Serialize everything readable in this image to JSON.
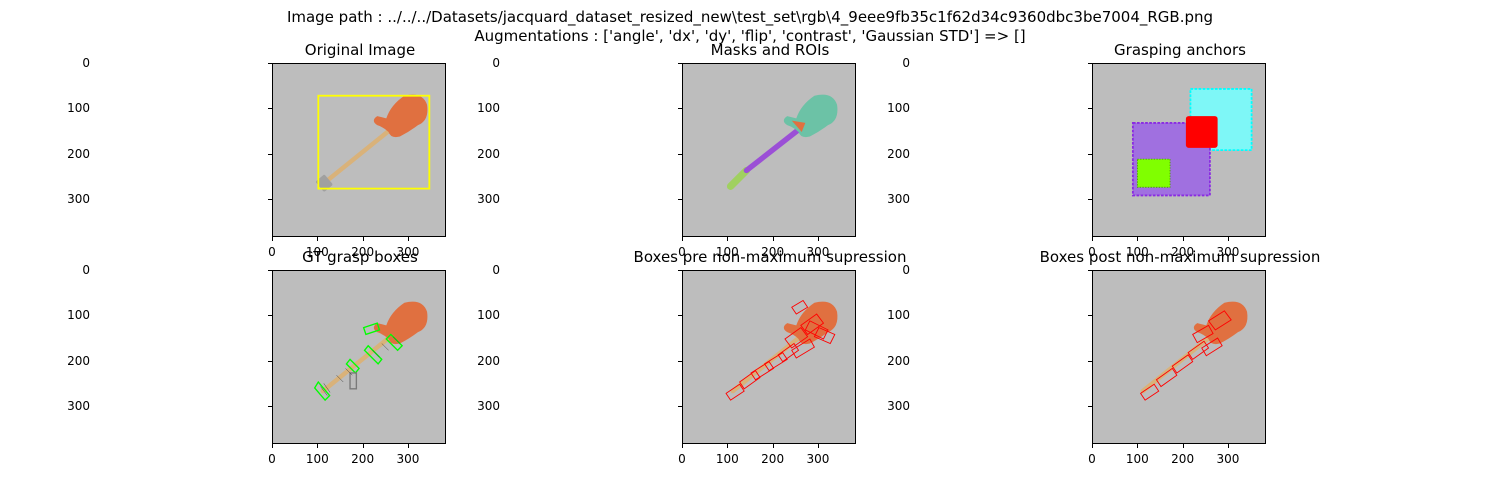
{
  "header": {
    "line1": "Image path : ../../../Datasets/jacquard_dataset_resized_new\\test_set\\rgb\\4_9eee9fb35c1f62d34c9360dbc3be7004_RGB.png",
    "line2": "Augmentations : ['angle', 'dx', 'dy', 'flip', 'contrast', 'Gaussian STD'] => []"
  },
  "panels": [
    {
      "title": "Original Image"
    },
    {
      "title": "Masks and ROIs"
    },
    {
      "title": "Grasping anchors"
    },
    {
      "title": "GT grasp boxes"
    },
    {
      "title": "Boxes pre non-maximum supression"
    },
    {
      "title": "Boxes post non-maximum supression"
    }
  ],
  "axes": {
    "yticks": [
      "0",
      "100",
      "200",
      "300"
    ],
    "xticks": [
      "0",
      "100",
      "200",
      "300"
    ]
  },
  "colors": {
    "background": "#bdbdbd",
    "guitar_body": "#e07040",
    "neck": "#d9b27a",
    "roi_box": "#ffff00",
    "mask_body": "#6cc2a6",
    "mask_neck": "#9b4fd6",
    "mask_head": "#a0d060",
    "anchor_cyan": "#00ffff",
    "anchor_purple": "#8a2be2",
    "anchor_red": "#ff0000",
    "anchor_green": "#80ff00",
    "gt_box": "#00ff00",
    "pred_box": "#ff0000"
  }
}
